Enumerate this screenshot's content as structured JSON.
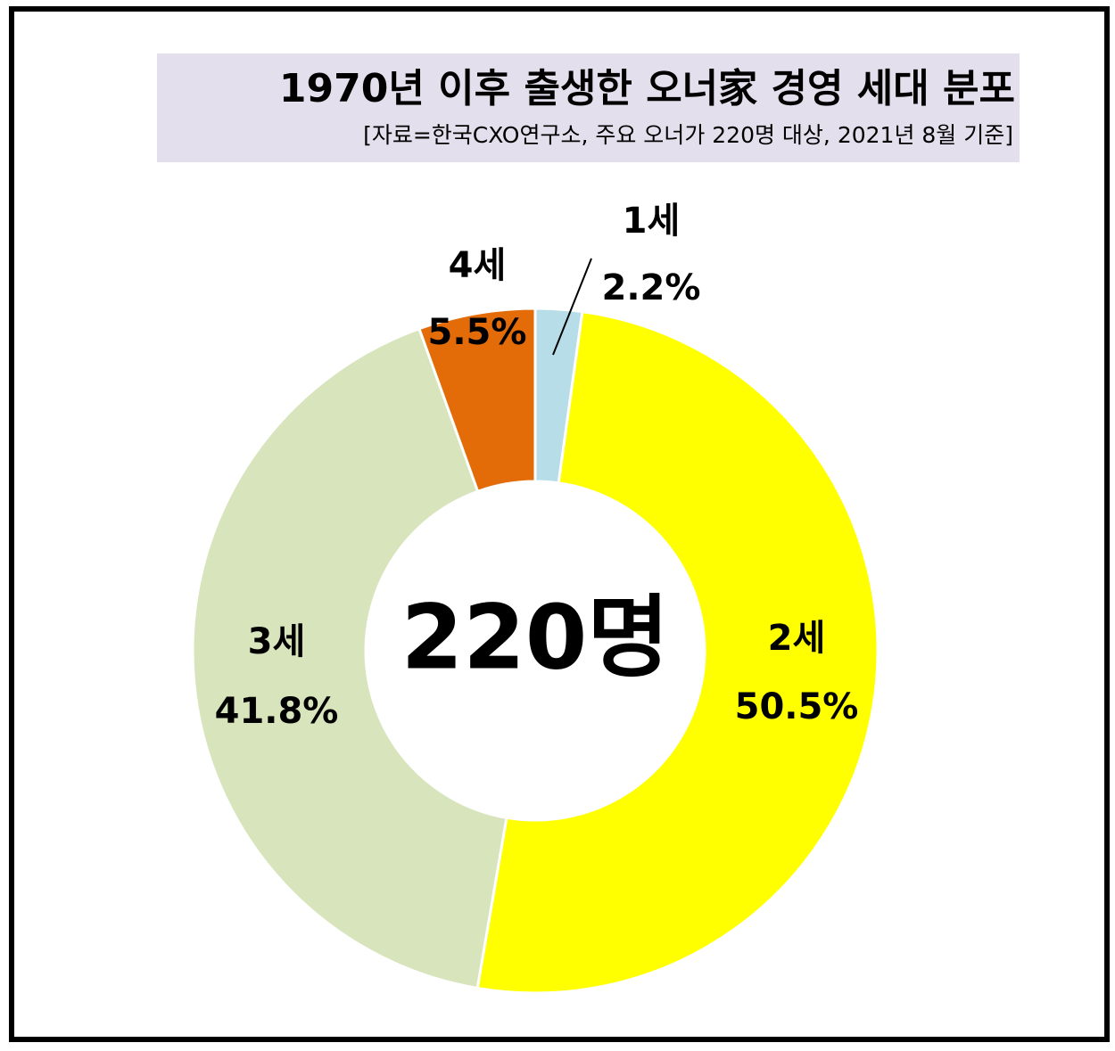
{
  "chart_data": {
    "type": "donut",
    "title": "1970년 이후 출생한 오너家 경영 세대 분포",
    "subtitle": "[자료=한국CXO연구소, 주요 오너가 220명 대상, 2021년 8월 기준]",
    "center_label": "220명",
    "categories": [
      "1세",
      "2세",
      "3세",
      "4세"
    ],
    "values": [
      2.2,
      50.5,
      41.8,
      5.5
    ],
    "value_labels": [
      "2.2%",
      "50.5%",
      "41.8%",
      "5.5%"
    ],
    "colors": [
      "#b7dde8",
      "#ffff00",
      "#d8e4bc",
      "#e36c09"
    ]
  }
}
